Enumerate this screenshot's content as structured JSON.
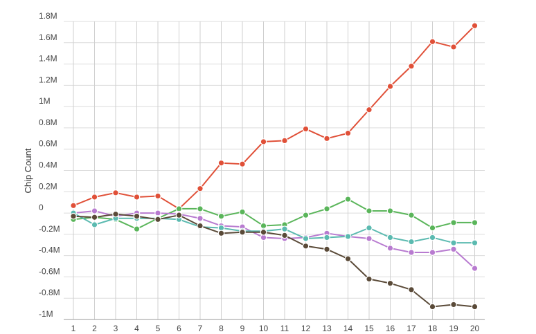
{
  "chart_data": {
    "type": "line",
    "title": "",
    "xlabel": "",
    "ylabel": "Chip Count",
    "categories": [
      "1",
      "2",
      "3",
      "4",
      "5",
      "6",
      "7",
      "8",
      "9",
      "10",
      "11",
      "12",
      "13",
      "14",
      "15",
      "16",
      "17",
      "18",
      "19",
      "20"
    ],
    "ylim": [
      -1000000,
      1800000
    ],
    "y_ticks": [
      1800000,
      1600000,
      1400000,
      1200000,
      1000000,
      800000,
      600000,
      400000,
      200000,
      0,
      -200000,
      -400000,
      -600000,
      -800000,
      -1000000
    ],
    "y_tick_labels": [
      "1.8M",
      "1.6M",
      "1.4M",
      "1.2M",
      "1M",
      "0.8M",
      "0.6M",
      "0.4M",
      "0.2M",
      "0",
      "-0.2M",
      "-0.4M",
      "-0.6M",
      "-0.8M",
      "-1M"
    ],
    "grid": true,
    "legend": "none",
    "series": [
      {
        "color": "#e05038",
        "values": [
          70000,
          150000,
          190000,
          150000,
          160000,
          40000,
          230000,
          470000,
          460000,
          670000,
          680000,
          790000,
          700000,
          750000,
          970000,
          1190000,
          1380000,
          1610000,
          1560000,
          1760000
        ]
      },
      {
        "color": "#5ab55a",
        "values": [
          -60000,
          -40000,
          -60000,
          -150000,
          -50000,
          40000,
          40000,
          -30000,
          10000,
          -120000,
          -110000,
          -20000,
          40000,
          130000,
          20000,
          20000,
          -20000,
          -140000,
          -90000,
          -90000
        ]
      },
      {
        "color": "#b87bd0",
        "values": [
          0,
          20000,
          -30000,
          0,
          0,
          -10000,
          -50000,
          -120000,
          -130000,
          -230000,
          -240000,
          -230000,
          -190000,
          -220000,
          -240000,
          -330000,
          -370000,
          -370000,
          -340000,
          -520000
        ]
      },
      {
        "color": "#5bbab0",
        "values": [
          0,
          -110000,
          -50000,
          -50000,
          -50000,
          -60000,
          -130000,
          -140000,
          -170000,
          -170000,
          -150000,
          -240000,
          -230000,
          -220000,
          -140000,
          -230000,
          -270000,
          -230000,
          -280000,
          -280000
        ]
      },
      {
        "color": "#5a4a38",
        "values": [
          -30000,
          -40000,
          -10000,
          -30000,
          -60000,
          -20000,
          -120000,
          -190000,
          -180000,
          -180000,
          -210000,
          -310000,
          -340000,
          -430000,
          -620000,
          -660000,
          -720000,
          -880000,
          -860000,
          -880000
        ]
      }
    ]
  }
}
